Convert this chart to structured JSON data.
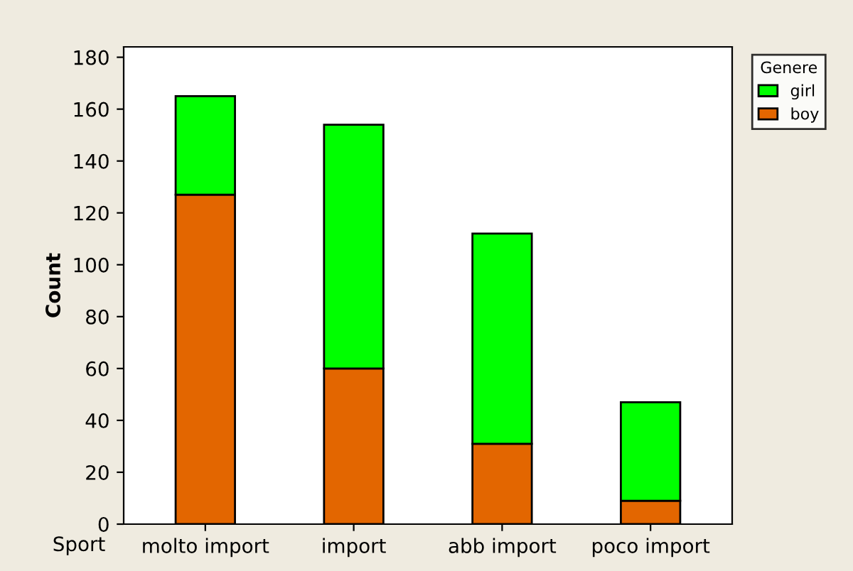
{
  "chart_data": {
    "type": "bar",
    "stacked": true,
    "xlabel": "Sport",
    "ylabel": "Count",
    "legend_title": "Genere",
    "categories": [
      "molto import",
      "import",
      "abb import",
      "poco import"
    ],
    "series": [
      {
        "name": "boy",
        "color": "#e36600",
        "values": [
          127,
          60,
          31,
          9
        ]
      },
      {
        "name": "girl",
        "color": "#00ff00",
        "values": [
          38,
          94,
          81,
          38
        ]
      }
    ],
    "ylim": [
      0,
      184
    ],
    "yticks": [
      0,
      20,
      40,
      60,
      80,
      100,
      120,
      140,
      160,
      180
    ],
    "grid": false,
    "legend": "top right"
  }
}
